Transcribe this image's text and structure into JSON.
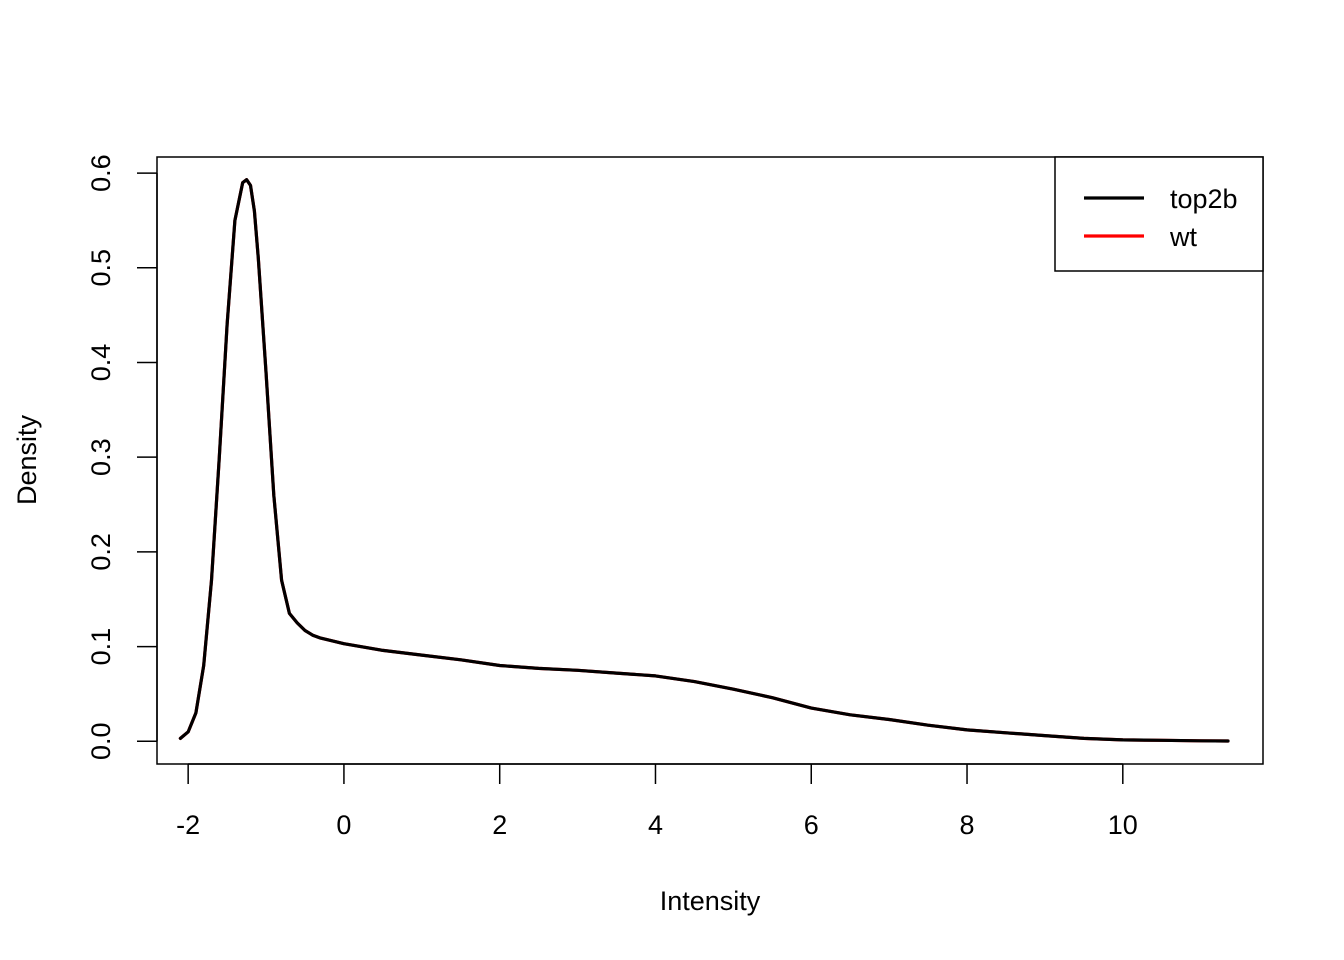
{
  "chart_data": {
    "type": "line",
    "title": "",
    "xlabel": "Intensity",
    "ylabel": "Density",
    "xlim": [
      -2.4,
      11.8
    ],
    "ylim": [
      -0.024,
      0.617
    ],
    "x_ticks": [
      -2,
      0,
      2,
      4,
      6,
      8,
      10
    ],
    "x_tick_labels": [
      "-2",
      "0",
      "2",
      "4",
      "6",
      "8",
      "10"
    ],
    "y_ticks": [
      0.0,
      0.1,
      0.2,
      0.3,
      0.4,
      0.5,
      0.6
    ],
    "y_tick_labels": [
      "0.0",
      "0.1",
      "0.2",
      "0.3",
      "0.4",
      "0.5",
      "0.6"
    ],
    "grid": false,
    "legend": {
      "position": "top-right",
      "entries": [
        {
          "name": "top2b",
          "color": "#000000"
        },
        {
          "name": "wt",
          "color": "#ff0000"
        }
      ]
    },
    "series": [
      {
        "name": "wt",
        "color": "#ff0000",
        "x": [
          -2.1,
          -2.0,
          -1.9,
          -1.8,
          -1.7,
          -1.6,
          -1.5,
          -1.4,
          -1.3,
          -1.25,
          -1.2,
          -1.15,
          -1.1,
          -1.0,
          -0.9,
          -0.8,
          -0.7,
          -0.6,
          -0.5,
          -0.4,
          -0.3,
          -0.2,
          0.0,
          0.5,
          1.0,
          1.5,
          2.0,
          2.5,
          3.0,
          3.5,
          4.0,
          4.5,
          5.0,
          5.5,
          6.0,
          6.5,
          7.0,
          7.5,
          8.0,
          8.5,
          9.0,
          9.5,
          10.0,
          10.5,
          11.0,
          11.35
        ],
        "y": [
          0.003,
          0.01,
          0.03,
          0.08,
          0.17,
          0.3,
          0.44,
          0.55,
          0.59,
          0.593,
          0.587,
          0.56,
          0.51,
          0.39,
          0.26,
          0.17,
          0.135,
          0.125,
          0.117,
          0.112,
          0.109,
          0.107,
          0.103,
          0.096,
          0.091,
          0.086,
          0.08,
          0.077,
          0.075,
          0.072,
          0.069,
          0.063,
          0.055,
          0.046,
          0.035,
          0.028,
          0.023,
          0.017,
          0.012,
          0.009,
          0.006,
          0.003,
          0.0015,
          0.001,
          0.0005,
          0.0003
        ]
      },
      {
        "name": "top2b",
        "color": "#000000",
        "x": [
          -2.1,
          -2.0,
          -1.9,
          -1.8,
          -1.7,
          -1.6,
          -1.5,
          -1.4,
          -1.3,
          -1.25,
          -1.2,
          -1.15,
          -1.1,
          -1.0,
          -0.9,
          -0.8,
          -0.7,
          -0.6,
          -0.5,
          -0.4,
          -0.3,
          -0.2,
          0.0,
          0.5,
          1.0,
          1.5,
          2.0,
          2.5,
          3.0,
          3.5,
          4.0,
          4.5,
          5.0,
          5.5,
          6.0,
          6.5,
          7.0,
          7.5,
          8.0,
          8.5,
          9.0,
          9.5,
          10.0,
          10.5,
          11.0,
          11.35
        ],
        "y": [
          0.003,
          0.01,
          0.03,
          0.08,
          0.17,
          0.3,
          0.44,
          0.55,
          0.59,
          0.593,
          0.587,
          0.56,
          0.51,
          0.39,
          0.26,
          0.17,
          0.135,
          0.125,
          0.117,
          0.112,
          0.109,
          0.107,
          0.103,
          0.096,
          0.091,
          0.086,
          0.08,
          0.077,
          0.075,
          0.072,
          0.069,
          0.063,
          0.055,
          0.046,
          0.035,
          0.028,
          0.023,
          0.017,
          0.012,
          0.009,
          0.006,
          0.003,
          0.0015,
          0.001,
          0.0005,
          0.0003
        ]
      }
    ]
  }
}
